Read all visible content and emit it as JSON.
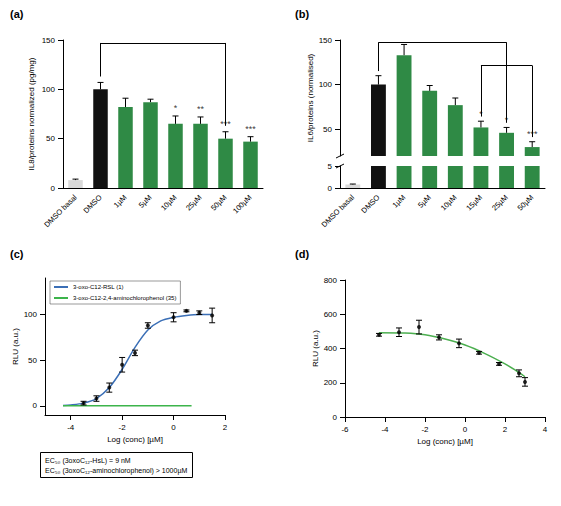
{
  "chart_data": [
    {
      "type": "bar",
      "title": "(a)",
      "y_label": "IL8/proteins normalized (pg/mg)",
      "categories": [
        "DMSO basal",
        "DMSO",
        "1µM",
        "5µM",
        "10µM",
        "25µM",
        "50µM",
        "100µM"
      ],
      "values": [
        8,
        100,
        82,
        87,
        65,
        65,
        50,
        47
      ],
      "errors": [
        1,
        7,
        9,
        3,
        8,
        7,
        7,
        5
      ],
      "colors": [
        "#d9d9d9",
        "#111111",
        "#2f8a45",
        "#2f8a45",
        "#2f8a45",
        "#2f8a45",
        "#2f8a45",
        "#2f8a45"
      ],
      "significance": [
        null,
        null,
        null,
        null,
        "*",
        "**",
        "***",
        "***"
      ],
      "brackets": [
        [
          "DMSO",
          "50µM"
        ]
      ],
      "ylim": [
        0,
        150
      ],
      "yticks": [
        0,
        50,
        100,
        150
      ]
    },
    {
      "type": "bar",
      "title": "(b)",
      "y_label": "IL6/proteins (normalised)",
      "categories": [
        "DMSO basal",
        "DMSO",
        "1µM",
        "5µM",
        "10µM",
        "15µM",
        "25µM",
        "50µM"
      ],
      "values": [
        0.8,
        100,
        133,
        93,
        77,
        52,
        46,
        30
      ],
      "errors": [
        0.1,
        10,
        12,
        6,
        8,
        7,
        6,
        6
      ],
      "colors": [
        "#d9d9d9",
        "#111111",
        "#2f8a45",
        "#2f8a45",
        "#2f8a45",
        "#2f8a45",
        "#2f8a45",
        "#2f8a45"
      ],
      "significance": [
        null,
        null,
        null,
        null,
        null,
        "*",
        "*",
        "***"
      ],
      "brackets": [
        [
          "DMSO",
          "25µM"
        ],
        [
          "15µM",
          "50µM"
        ]
      ],
      "y_segments": [
        {
          "ylim": [
            0,
            5
          ],
          "yticks": [
            0,
            5
          ]
        },
        {
          "ylim": [
            20,
            150
          ],
          "yticks": [
            50,
            100,
            150
          ]
        }
      ]
    },
    {
      "type": "line",
      "title": "(c)",
      "x_label": "Log (conc) [µM]",
      "y_label": "RLU (a.u.)",
      "xlim": [
        -5,
        2
      ],
      "xticks": [
        -4,
        -2,
        0,
        2
      ],
      "ylim": [
        -10,
        140
      ],
      "yticks": [
        0,
        50,
        100
      ],
      "legend": "upper left",
      "marker": "circle",
      "annotations": [
        "EC₅₀ (3oxoC₁₂-HsL) = 9 nM",
        "EC₅₀ (3oxoC₁₂-aminochlorophenol) > 1000µM"
      ],
      "series": [
        {
          "name": "3-oxo-C12-RSL (1)",
          "color": "#3b6fb6",
          "x": [
            -3.5,
            -3,
            -2.5,
            -2,
            -1.5,
            -1,
            0,
            0.5,
            1,
            1.5
          ],
          "values": [
            3,
            8,
            20,
            45,
            58,
            88,
            97,
            104,
            102,
            99
          ],
          "errors": [
            2,
            3,
            5,
            8,
            3,
            3,
            5,
            1,
            2,
            8
          ],
          "fit_x": [
            -4.3,
            -4,
            -3.5,
            -3,
            -2.5,
            -2,
            -1.5,
            -1,
            -0.5,
            0,
            0.5,
            1,
            1.5
          ],
          "fit_values": [
            0.5,
            1,
            3,
            8,
            20,
            40,
            64,
            83,
            93,
            97,
            99,
            100,
            100
          ]
        },
        {
          "name": "3-oxo-C12-2,4-aminochlorophenol (35)",
          "color": "#3cb44b",
          "fit_x": [
            -4.3,
            0.7
          ],
          "fit_values": [
            0,
            0
          ]
        }
      ]
    },
    {
      "type": "line",
      "title": "(d)",
      "x_label": "Log (conc) [µM]",
      "y_label": "RLU (a.u.)",
      "xlim": [
        -6,
        4
      ],
      "xticks": [
        -6,
        -4,
        -2,
        0,
        2,
        4
      ],
      "ylim": [
        0,
        800
      ],
      "yticks": [
        0,
        200,
        400,
        600,
        800
      ],
      "marker": "circle",
      "series": [
        {
          "color": "#4caf50",
          "x": [
            -4.3,
            -3.3,
            -2.3,
            -1.3,
            -0.3,
            0.7,
            1.7,
            2.7,
            3
          ],
          "values": [
            480,
            495,
            525,
            465,
            430,
            375,
            310,
            255,
            205
          ],
          "errors": [
            8,
            25,
            40,
            15,
            25,
            8,
            8,
            20,
            25
          ],
          "fit_x": [
            -4.3,
            -3,
            -2,
            -1,
            0,
            1,
            2,
            2.5,
            3
          ],
          "fit_values": [
            492,
            490,
            480,
            455,
            420,
            370,
            310,
            275,
            235
          ]
        }
      ]
    }
  ]
}
